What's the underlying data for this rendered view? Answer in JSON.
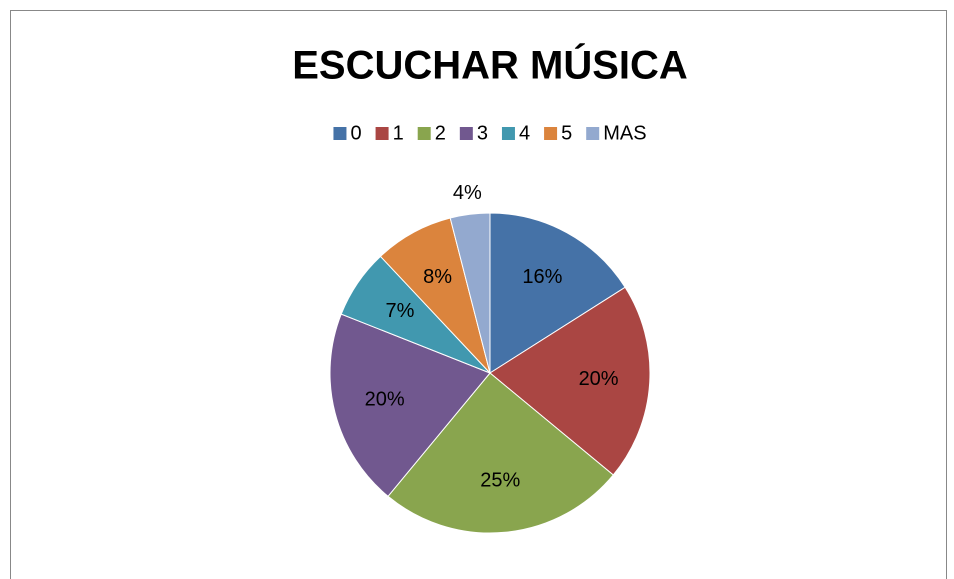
{
  "chart_data": {
    "type": "pie",
    "title": "ESCUCHAR MÚSICA",
    "categories": [
      "0",
      "1",
      "2",
      "3",
      "4",
      "5",
      "MAS"
    ],
    "values": [
      16,
      20,
      25,
      20,
      7,
      8,
      4
    ],
    "value_labels": [
      "16%",
      "20%",
      "25%",
      "20%",
      "7%",
      "8%",
      "4%"
    ],
    "colors": [
      "#4572a7",
      "#aa4643",
      "#89a54e",
      "#71588f",
      "#4198af",
      "#db843d",
      "#93a9cf"
    ],
    "legend": "top"
  }
}
